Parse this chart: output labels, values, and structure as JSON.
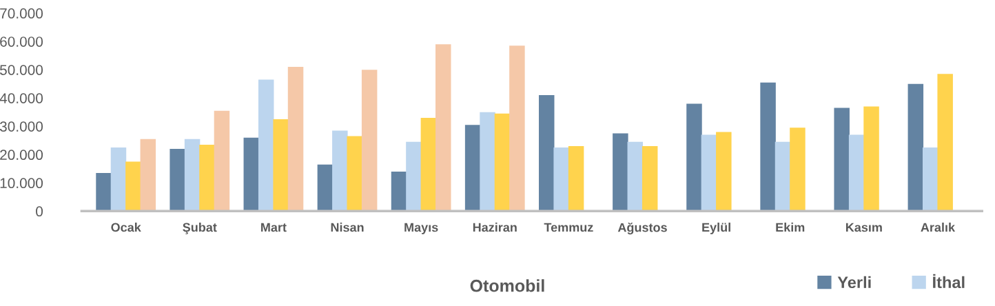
{
  "chart_data": {
    "type": "bar",
    "title": "Otomobil",
    "categories": [
      "Ocak",
      "Şubat",
      "Mart",
      "Nisan",
      "Mayıs",
      "Haziran",
      "Temmuz",
      "Ağustos",
      "Eylül",
      "Ekim",
      "Kasım",
      "Aralık"
    ],
    "series": [
      {
        "name": "Yerli",
        "color": "#6383a2",
        "values": [
          13500,
          22000,
          26000,
          16500,
          14000,
          30500,
          41000,
          27500,
          38000,
          45500,
          36500,
          45000
        ]
      },
      {
        "name": "İthal",
        "color": "#bcd5ee",
        "values": [
          22500,
          25500,
          46500,
          28500,
          24500,
          35000,
          22500,
          24500,
          27000,
          24500,
          27000,
          22500
        ]
      },
      {
        "color": "#ffd34d",
        "values": [
          17500,
          23500,
          32500,
          26500,
          33000,
          34500,
          23000,
          23000,
          28000,
          29500,
          37000,
          48500
        ]
      },
      {
        "color": "#f5c8a8",
        "values": [
          25500,
          35500,
          51000,
          50000,
          59000,
          58500,
          null,
          null,
          null,
          null,
          null,
          null
        ]
      }
    ],
    "ylim": [
      0,
      70000
    ],
    "yticks": [
      0,
      {
        "value": 10000,
        "label": "10.000"
      },
      {
        "value": 20000,
        "label": "20.000"
      },
      {
        "value": 30000,
        "label": "30.000"
      },
      {
        "value": 40000,
        "label": "40.000"
      },
      {
        "value": 50000,
        "label": "50.000"
      },
      {
        "value": 60000,
        "label": "60.000"
      },
      {
        "value": 70000,
        "label": "70.000"
      }
    ],
    "grid": false,
    "legend": "bottom right"
  }
}
